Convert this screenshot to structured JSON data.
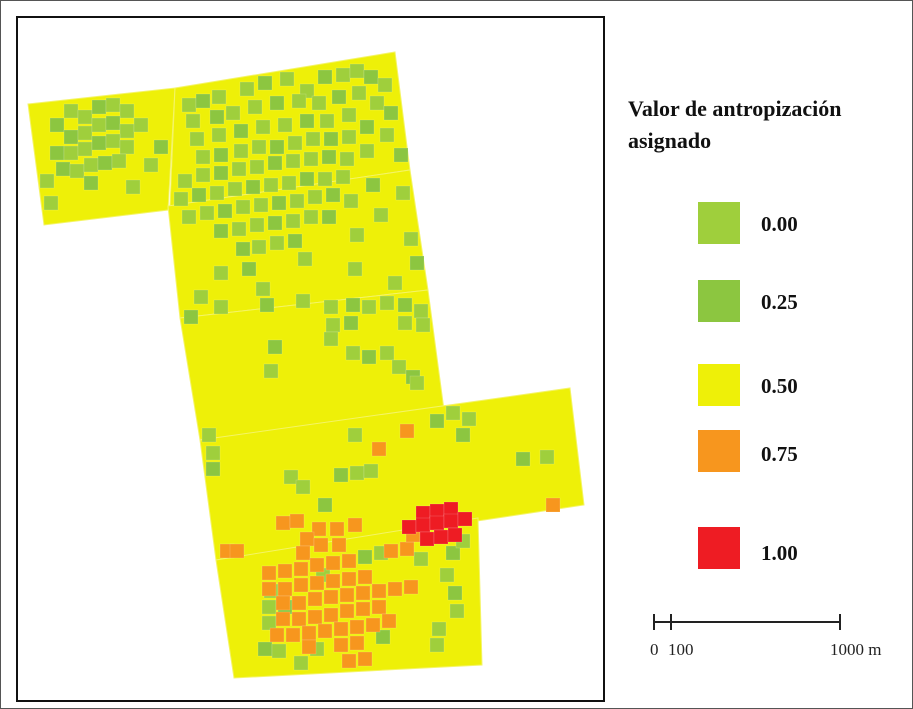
{
  "legend": {
    "title_line1": "Valor de antropización",
    "title_line2": "asignado",
    "items": [
      {
        "label": "0.00",
        "color": "#9fcf3c"
      },
      {
        "label": "0.25",
        "color": "#8cc640"
      },
      {
        "label": "0.50",
        "color": "#eef008"
      },
      {
        "label": "0.75",
        "color": "#f7961e"
      },
      {
        "label": "1.00",
        "color": "#ee1c23"
      }
    ]
  },
  "scalebar": {
    "label_0": "0",
    "label_100": "100",
    "label_1000": "1000 m"
  },
  "map": {
    "background_class_color": "#eef008",
    "grid_line_color": "#f4f466",
    "border_color": "#111111"
  }
}
